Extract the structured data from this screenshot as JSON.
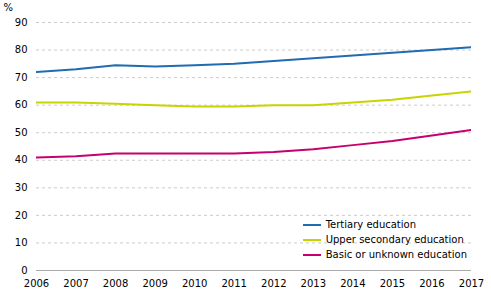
{
  "chart_data": {
    "type": "line",
    "x": [
      2006,
      2007,
      2008,
      2009,
      2010,
      2011,
      2012,
      2013,
      2014,
      2015,
      2016,
      2017
    ],
    "series": [
      {
        "name": "Tertiary education",
        "color": "#1f6cb0",
        "values": [
          72,
          73,
          74.5,
          74,
          74.5,
          75,
          76,
          77,
          78,
          79,
          80,
          81
        ]
      },
      {
        "name": "Upper secondary education",
        "color": "#c8d400",
        "values": [
          61,
          61,
          60.5,
          60,
          59.5,
          59.5,
          60,
          60,
          61,
          62,
          63.5,
          65
        ]
      },
      {
        "name": "Basic or unknown education",
        "color": "#c8006e",
        "values": [
          41,
          41.5,
          42.5,
          42.5,
          42.5,
          42.5,
          43,
          44,
          45.5,
          47,
          49,
          51
        ]
      }
    ],
    "xlim": [
      2006,
      2017
    ],
    "xticks": [
      2006,
      2007,
      2008,
      2009,
      2010,
      2011,
      2012,
      2013,
      2014,
      2015,
      2016,
      2017
    ],
    "ylim": [
      0,
      90
    ],
    "yticks": [
      0,
      10,
      20,
      30,
      40,
      50,
      60,
      70,
      80,
      90
    ],
    "ylabel": "%",
    "grid": true,
    "legend": "lower right"
  }
}
